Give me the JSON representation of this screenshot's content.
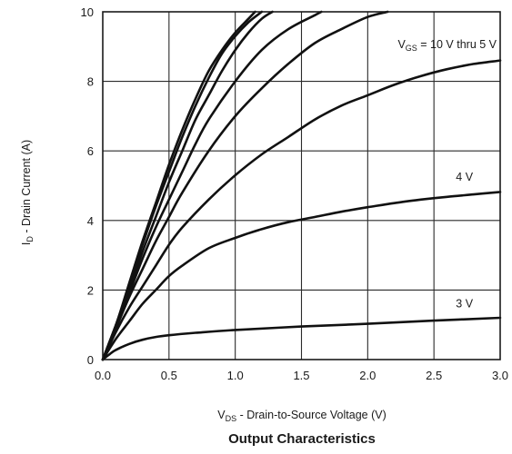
{
  "chart_data": {
    "type": "line",
    "title": "Output Characteristics",
    "xlabel": {
      "main": "V",
      "sub": "DS",
      "rest": " - Drain-to-Source Voltage (V)"
    },
    "ylabel": {
      "main": "I",
      "sub": "D",
      "rest": " - Drain Current (A)"
    },
    "xlim": [
      0,
      3
    ],
    "ylim": [
      0,
      10
    ],
    "x_ticks": [
      "0.0",
      "0.5",
      "1.0",
      "1.5",
      "2.0",
      "2.5",
      "3.0"
    ],
    "y_ticks": [
      "0",
      "2",
      "4",
      "6",
      "8",
      "10"
    ],
    "grid": true,
    "annotations": [
      {
        "id": "vgs_label",
        "main": "V",
        "sub": "GS",
        "rest": " = 10 V thru 5 V",
        "x": 2.6,
        "y": 8.95
      },
      {
        "id": "v4_label",
        "text": "4 V",
        "x": 2.73,
        "y": 5.15
      },
      {
        "id": "v3_label",
        "text": "3 V",
        "x": 2.73,
        "y": 1.5
      }
    ],
    "series": [
      {
        "values": [
          [
            0,
            0
          ],
          [
            0.1,
            1.0
          ],
          [
            0.2,
            2.2
          ],
          [
            0.3,
            3.4
          ],
          [
            0.4,
            4.5
          ],
          [
            0.5,
            5.6
          ],
          [
            0.6,
            6.6
          ],
          [
            0.7,
            7.5
          ],
          [
            0.8,
            8.3
          ],
          [
            0.9,
            8.9
          ],
          [
            1.0,
            9.4
          ],
          [
            1.1,
            9.8
          ],
          [
            1.15,
            10.0
          ]
        ]
      },
      {
        "values": [
          [
            0,
            0
          ],
          [
            0.1,
            1.0
          ],
          [
            0.2,
            2.1
          ],
          [
            0.3,
            3.3
          ],
          [
            0.4,
            4.4
          ],
          [
            0.5,
            5.4
          ],
          [
            0.6,
            6.4
          ],
          [
            0.7,
            7.3
          ],
          [
            0.8,
            8.1
          ],
          [
            0.9,
            8.8
          ],
          [
            1.0,
            9.3
          ],
          [
            1.1,
            9.7
          ],
          [
            1.2,
            10.0
          ]
        ]
      },
      {
        "values": [
          [
            0,
            0
          ],
          [
            0.1,
            1.0
          ],
          [
            0.2,
            2.0
          ],
          [
            0.3,
            3.1
          ],
          [
            0.4,
            4.1
          ],
          [
            0.5,
            5.1
          ],
          [
            0.6,
            6.0
          ],
          [
            0.7,
            6.9
          ],
          [
            0.8,
            7.6
          ],
          [
            0.9,
            8.3
          ],
          [
            1.0,
            8.9
          ],
          [
            1.1,
            9.4
          ],
          [
            1.2,
            9.8
          ],
          [
            1.28,
            10.0
          ]
        ]
      },
      {
        "values": [
          [
            0,
            0
          ],
          [
            0.1,
            0.9
          ],
          [
            0.2,
            1.9
          ],
          [
            0.3,
            2.9
          ],
          [
            0.4,
            3.8
          ],
          [
            0.5,
            4.6
          ],
          [
            0.6,
            5.4
          ],
          [
            0.7,
            6.2
          ],
          [
            0.8,
            6.9
          ],
          [
            1.0,
            8.0
          ],
          [
            1.2,
            8.9
          ],
          [
            1.4,
            9.5
          ],
          [
            1.6,
            9.9
          ],
          [
            1.65,
            10.0
          ]
        ]
      },
      {
        "values": [
          [
            0,
            0
          ],
          [
            0.1,
            0.9
          ],
          [
            0.2,
            1.8
          ],
          [
            0.3,
            2.6
          ],
          [
            0.4,
            3.4
          ],
          [
            0.5,
            4.1
          ],
          [
            0.6,
            4.8
          ],
          [
            0.8,
            6.0
          ],
          [
            1.0,
            7.0
          ],
          [
            1.2,
            7.8
          ],
          [
            1.4,
            8.5
          ],
          [
            1.6,
            9.1
          ],
          [
            1.8,
            9.5
          ],
          [
            2.0,
            9.85
          ],
          [
            2.15,
            10.0
          ]
        ]
      },
      {
        "values": [
          [
            0,
            0
          ],
          [
            0.1,
            0.8
          ],
          [
            0.2,
            1.5
          ],
          [
            0.3,
            2.1
          ],
          [
            0.4,
            2.7
          ],
          [
            0.5,
            3.3
          ],
          [
            0.6,
            3.8
          ],
          [
            0.8,
            4.6
          ],
          [
            1.0,
            5.3
          ],
          [
            1.2,
            5.9
          ],
          [
            1.4,
            6.4
          ],
          [
            1.6,
            6.9
          ],
          [
            1.8,
            7.3
          ],
          [
            2.0,
            7.6
          ],
          [
            2.2,
            7.9
          ],
          [
            2.4,
            8.15
          ],
          [
            2.6,
            8.35
          ],
          [
            2.8,
            8.5
          ],
          [
            3.0,
            8.6
          ]
        ]
      },
      {
        "values": [
          [
            0,
            0
          ],
          [
            0.1,
            0.6
          ],
          [
            0.2,
            1.1
          ],
          [
            0.3,
            1.6
          ],
          [
            0.4,
            2.0
          ],
          [
            0.5,
            2.4
          ],
          [
            0.6,
            2.7
          ],
          [
            0.8,
            3.2
          ],
          [
            1.0,
            3.5
          ],
          [
            1.2,
            3.75
          ],
          [
            1.4,
            3.95
          ],
          [
            1.6,
            4.1
          ],
          [
            1.8,
            4.25
          ],
          [
            2.0,
            4.38
          ],
          [
            2.2,
            4.5
          ],
          [
            2.4,
            4.6
          ],
          [
            2.6,
            4.68
          ],
          [
            2.8,
            4.75
          ],
          [
            3.0,
            4.82
          ]
        ]
      },
      {
        "values": [
          [
            0,
            0
          ],
          [
            0.05,
            0.15
          ],
          [
            0.1,
            0.28
          ],
          [
            0.2,
            0.45
          ],
          [
            0.3,
            0.57
          ],
          [
            0.4,
            0.65
          ],
          [
            0.5,
            0.7
          ],
          [
            0.7,
            0.77
          ],
          [
            1.0,
            0.85
          ],
          [
            1.5,
            0.95
          ],
          [
            2.0,
            1.03
          ],
          [
            2.5,
            1.12
          ],
          [
            3.0,
            1.2
          ]
        ]
      }
    ]
  }
}
